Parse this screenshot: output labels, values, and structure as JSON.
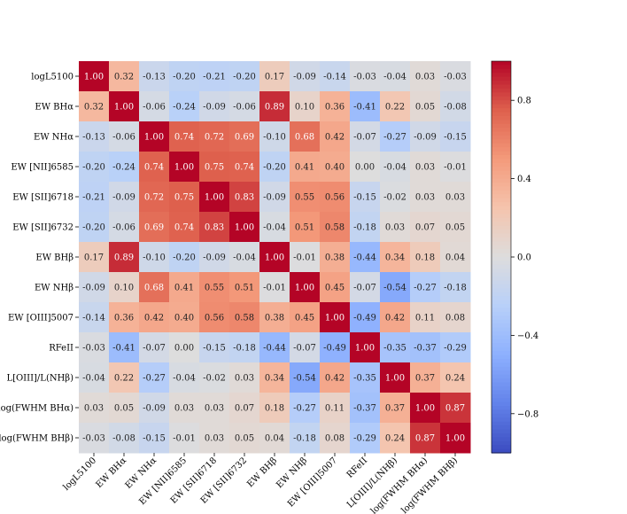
{
  "chart_data": {
    "type": "heatmap",
    "title": "",
    "labels": [
      "logL5100",
      "EW BHα",
      "EW NHα",
      "EW [NII]6585",
      "EW [SII]6718",
      "EW [SII]6732",
      "EW BHβ",
      "EW NHβ",
      "EW [OIII]5007",
      "RFeII",
      "L[OIII]/L(NHβ)",
      "log(FWHM BHα)",
      "log(FWHM BHβ)"
    ],
    "matrix": [
      [
        1.0,
        0.32,
        -0.13,
        -0.2,
        -0.21,
        -0.2,
        0.17,
        -0.09,
        -0.14,
        -0.03,
        -0.04,
        0.03,
        -0.03
      ],
      [
        0.32,
        1.0,
        -0.06,
        -0.24,
        -0.09,
        -0.06,
        0.89,
        0.1,
        0.36,
        -0.41,
        0.22,
        0.05,
        -0.08
      ],
      [
        -0.13,
        -0.06,
        1.0,
        0.74,
        0.72,
        0.69,
        -0.1,
        0.68,
        0.42,
        -0.07,
        -0.27,
        -0.09,
        -0.15
      ],
      [
        -0.2,
        -0.24,
        0.74,
        1.0,
        0.75,
        0.74,
        -0.2,
        0.41,
        0.4,
        -0.0,
        -0.04,
        0.03,
        -0.01
      ],
      [
        -0.21,
        -0.09,
        0.72,
        0.75,
        1.0,
        0.83,
        -0.09,
        0.55,
        0.56,
        -0.15,
        -0.02,
        0.03,
        0.03
      ],
      [
        -0.2,
        -0.06,
        0.69,
        0.74,
        0.83,
        1.0,
        -0.04,
        0.51,
        0.58,
        -0.18,
        0.03,
        0.07,
        0.05
      ],
      [
        0.17,
        0.89,
        -0.1,
        -0.2,
        -0.09,
        -0.04,
        1.0,
        -0.01,
        0.38,
        -0.44,
        0.34,
        0.18,
        0.04
      ],
      [
        -0.09,
        0.1,
        0.68,
        0.41,
        0.55,
        0.51,
        -0.01,
        1.0,
        0.45,
        -0.07,
        -0.54,
        -0.27,
        -0.18
      ],
      [
        -0.14,
        0.36,
        0.42,
        0.4,
        0.56,
        0.58,
        0.38,
        0.45,
        1.0,
        -0.49,
        0.42,
        0.11,
        0.08
      ],
      [
        -0.03,
        -0.41,
        -0.07,
        -0.0,
        -0.15,
        -0.18,
        -0.44,
        -0.07,
        -0.49,
        1.0,
        -0.35,
        -0.37,
        -0.29
      ],
      [
        -0.04,
        0.22,
        -0.27,
        -0.04,
        -0.02,
        0.03,
        0.34,
        -0.54,
        0.42,
        -0.35,
        1.0,
        0.37,
        0.24
      ],
      [
        0.03,
        0.05,
        -0.09,
        0.03,
        0.03,
        0.07,
        0.18,
        -0.27,
        0.11,
        -0.37,
        0.37,
        1.0,
        0.87
      ],
      [
        -0.03,
        -0.08,
        -0.15,
        -0.01,
        0.03,
        0.05,
        0.04,
        -0.18,
        0.08,
        -0.29,
        0.24,
        0.87,
        1.0
      ]
    ],
    "value_format": "2 decimals",
    "colormap": "coolwarm",
    "vmin": -1.0,
    "vmax": 1.0,
    "colorbar_ticks": [
      0.8,
      0.4,
      0.0,
      -0.4,
      -0.8
    ],
    "colorbar_tick_labels": [
      "0.8",
      "0.4",
      "0.0",
      "−0.4",
      "−0.8"
    ],
    "legend_position": "right"
  },
  "colors": {
    "low": "#3b4cc0",
    "mid": "#dddddd",
    "high": "#b40426",
    "text_dark": "#222222",
    "text_light": "#ffffff"
  }
}
